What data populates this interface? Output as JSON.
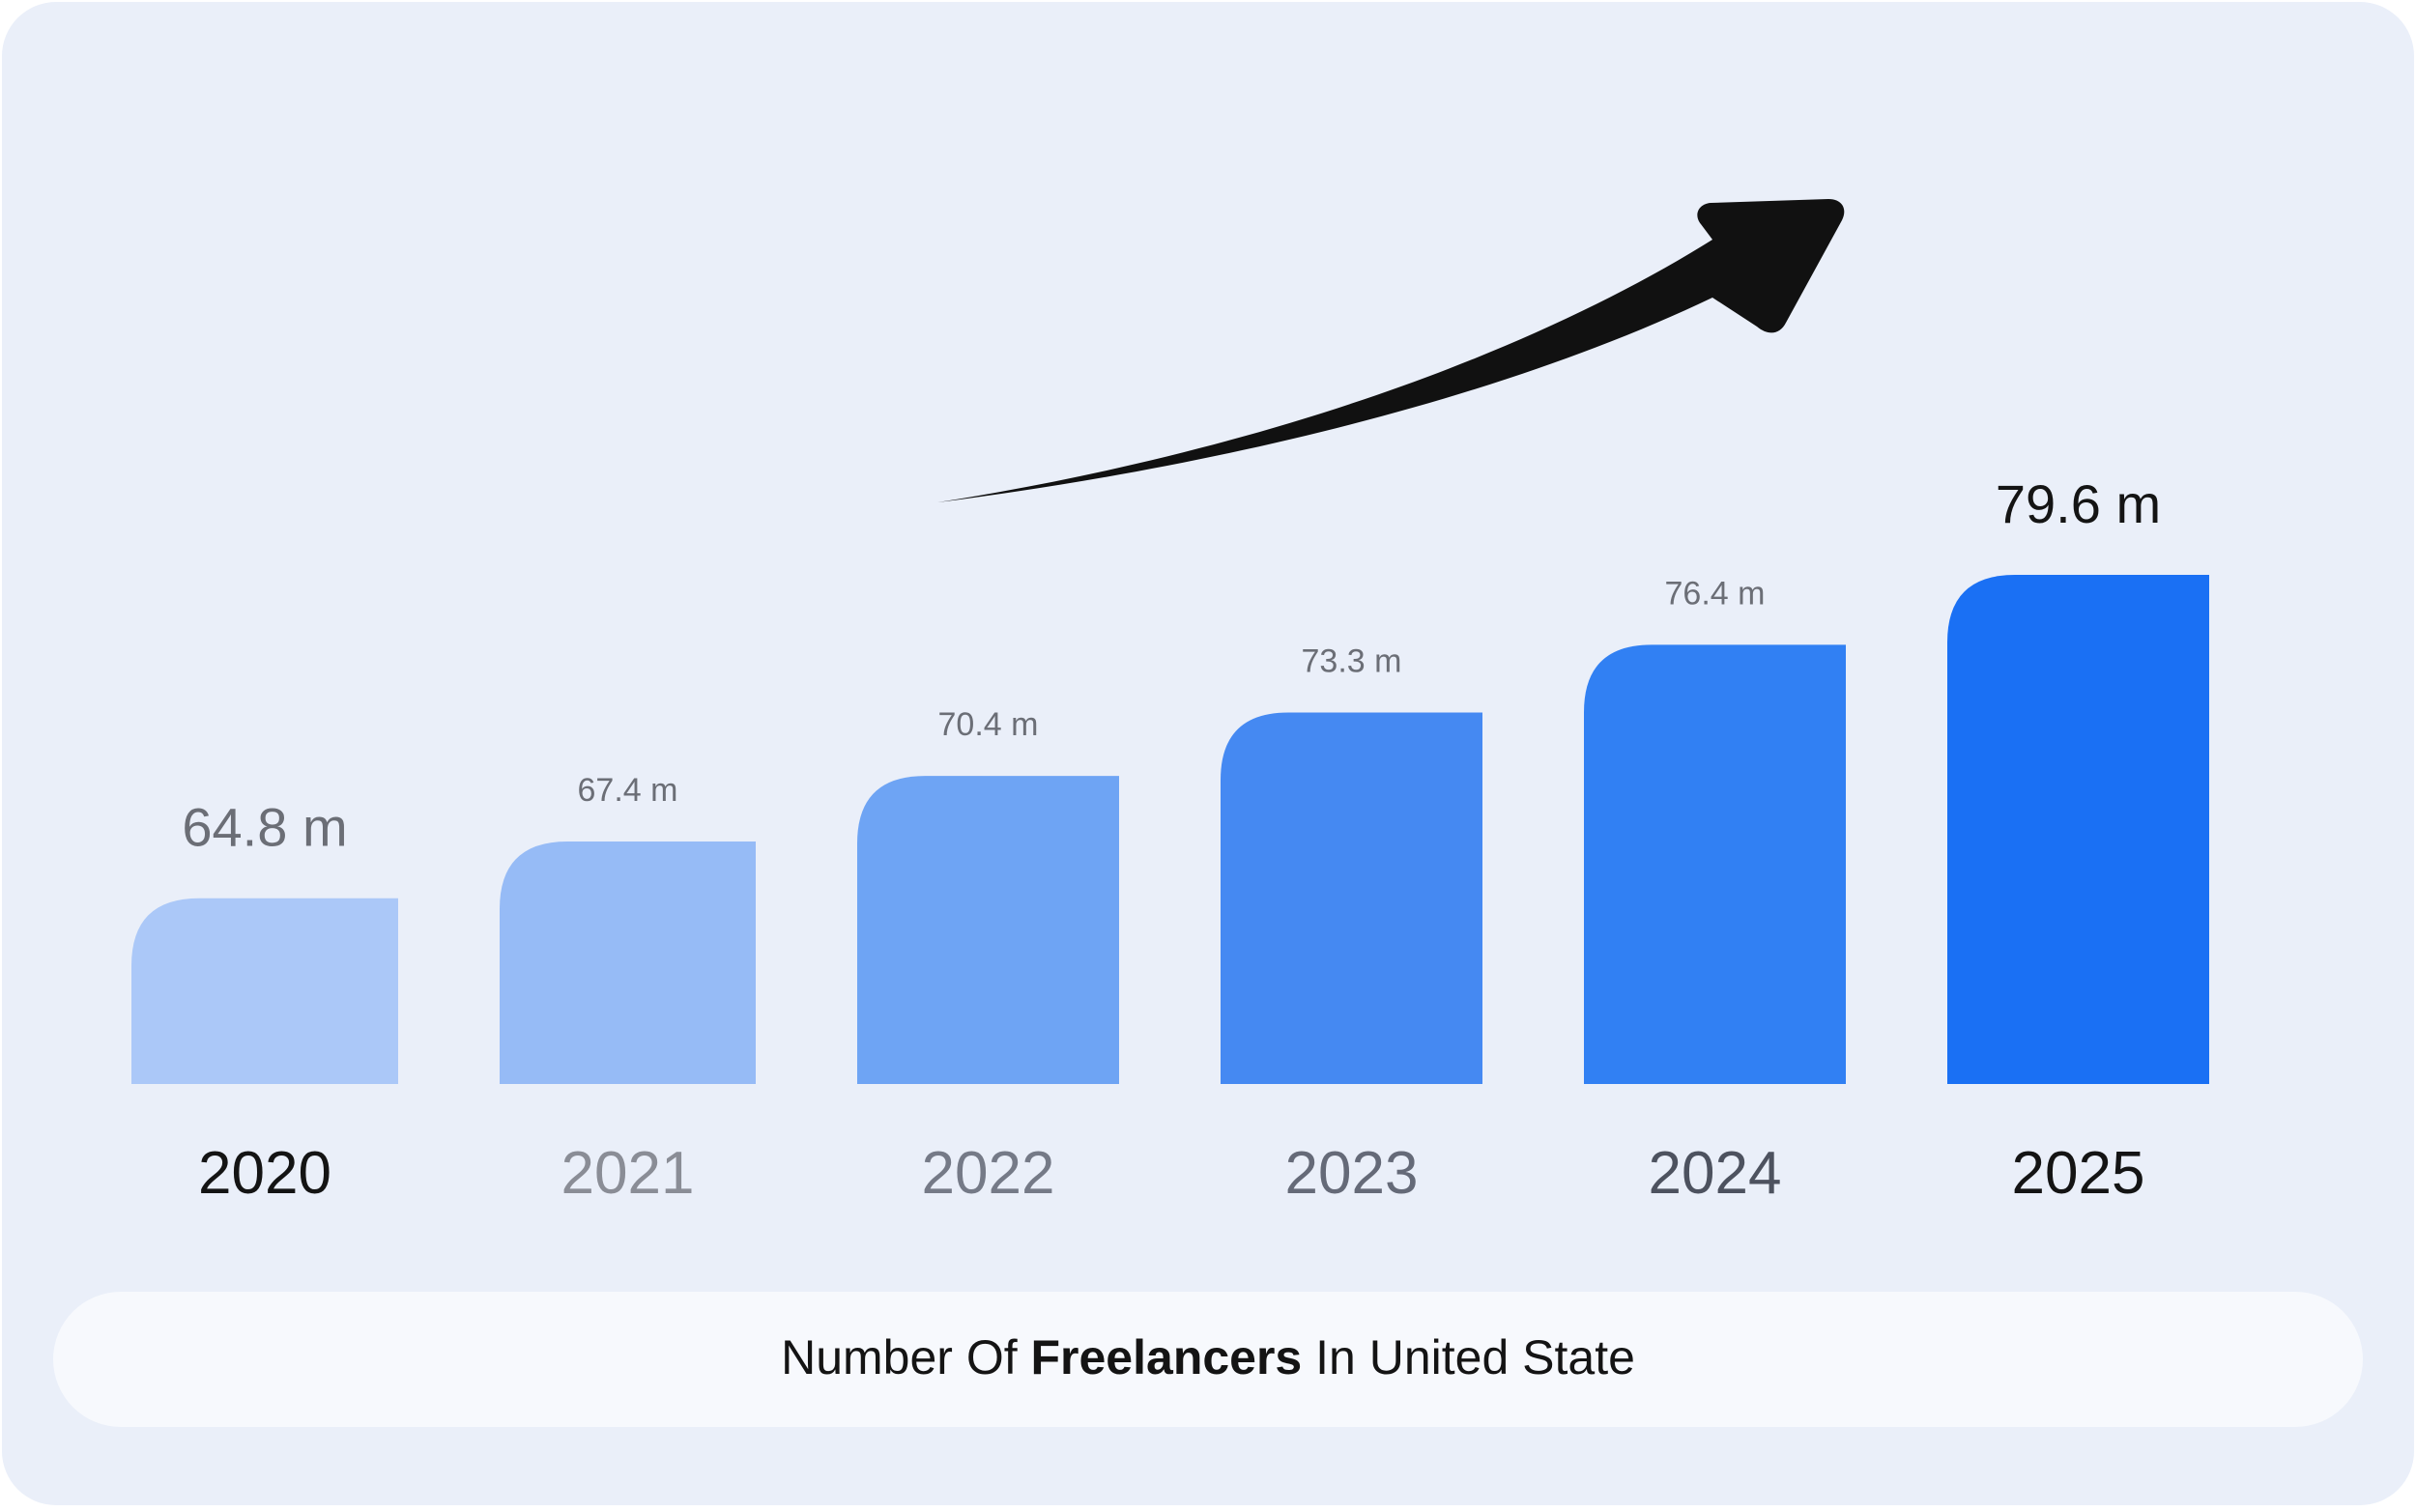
{
  "chart_data": {
    "type": "bar",
    "categories": [
      "2020",
      "2021",
      "2022",
      "2023",
      "2024",
      "2025"
    ],
    "values": [
      64.8,
      67.4,
      70.4,
      73.3,
      76.4,
      79.6
    ],
    "value_labels": [
      "64.8 m",
      "67.4 m",
      "70.4 m",
      "73.3 m",
      "76.4 m",
      "79.6 m"
    ],
    "units": "m",
    "ylim": [
      56.3,
      79.6
    ],
    "grid": false,
    "legend": "none",
    "bar_colors": [
      "#abc8f8",
      "#96bbf6",
      "#6ea4f4",
      "#4589f2",
      "#3180f3",
      "#1a70f4"
    ],
    "category_label_colors": [
      "#141414",
      "#8a8d96",
      "#757a87",
      "#656a78",
      "#4d525f",
      "#141414"
    ],
    "value_label_colors": [
      "#6b6e76",
      "#6b6e76",
      "#6b6e76",
      "#6b6e76",
      "#6b6e76",
      "#141414"
    ],
    "trend": "upward-arrow-icon"
  },
  "caption": {
    "prefix": "Number Of ",
    "emphasis": "Freelancers",
    "suffix": " In United State"
  },
  "colors": {
    "card_background": "#eaeff9",
    "caption_pill": "#f7f9fd",
    "arrow": "#111111",
    "text_dark": "#141414"
  }
}
